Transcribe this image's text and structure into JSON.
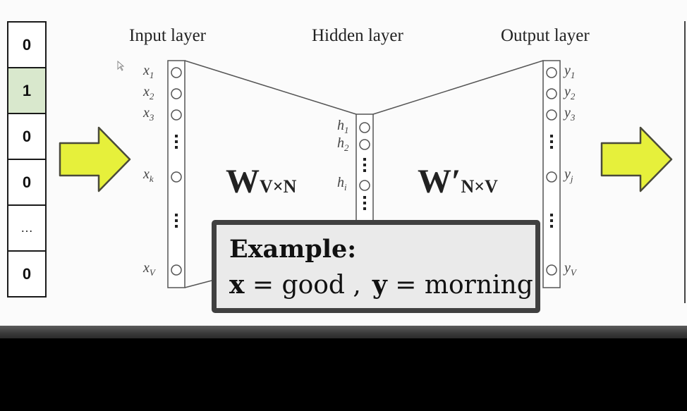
{
  "onehot_vector": {
    "cells": [
      "0",
      "1",
      "0",
      "0",
      "…",
      "0"
    ],
    "highlighted_index": 1
  },
  "diagram": {
    "layers": {
      "input": "Input layer",
      "hidden": "Hidden layer",
      "output": "Output layer"
    },
    "input_nodes": [
      {
        "base": "x",
        "sub": "1"
      },
      {
        "base": "x",
        "sub": "2"
      },
      {
        "base": "x",
        "sub": "3"
      },
      {
        "base": "x",
        "sub": "k"
      },
      {
        "base": "x",
        "sub": "V"
      }
    ],
    "hidden_nodes": [
      {
        "base": "h",
        "sub": "1"
      },
      {
        "base": "h",
        "sub": "2"
      },
      {
        "base": "h",
        "sub": "i"
      }
    ],
    "output_nodes": [
      {
        "base": "y",
        "sub": "1"
      },
      {
        "base": "y",
        "sub": "2"
      },
      {
        "base": "y",
        "sub": "3"
      },
      {
        "base": "y",
        "sub": "j"
      },
      {
        "base": "y",
        "sub": "V"
      }
    ],
    "weights": {
      "input_to_hidden": {
        "symbol": "W",
        "dims": "V×N"
      },
      "hidden_to_output": {
        "symbol": "W′",
        "dims": "N×V"
      }
    }
  },
  "arrows": {
    "color": "#e6f03b",
    "stroke": "#4a4a3a"
  },
  "example": {
    "heading": "Example:",
    "x_var": "x",
    "x_value": "= good ,",
    "y_var": "y",
    "y_value": "= morning"
  }
}
